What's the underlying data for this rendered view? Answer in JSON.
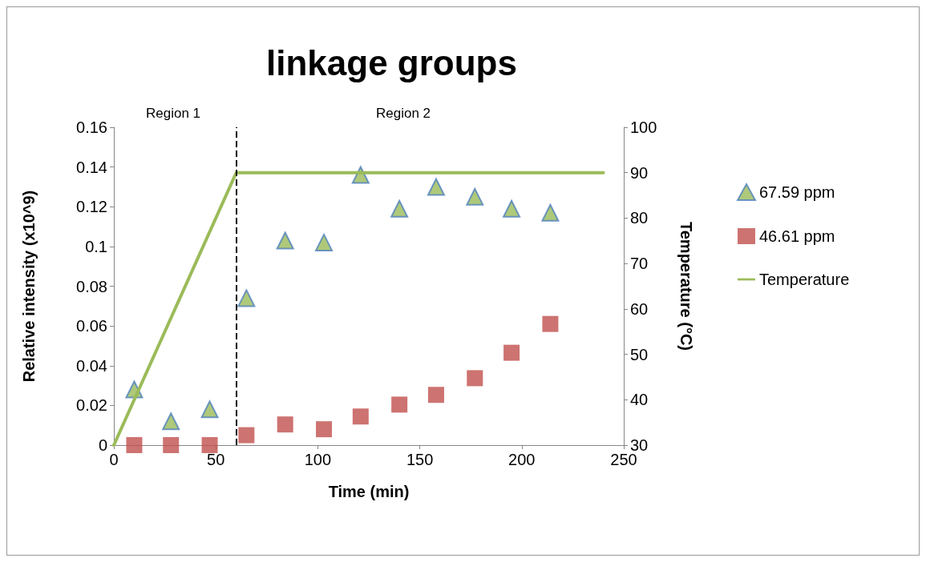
{
  "chart_data": {
    "type": "scatter",
    "title": "linkage groups",
    "xlabel": "Time (min)",
    "ylabel": "Relative intensity (x10^9)",
    "y2label": "Temperature (°C)",
    "annotations": [
      "Region 1",
      "Region 2"
    ],
    "series": [
      {
        "name": "67.59 ppm",
        "marker": "triangle",
        "color": "#9bbb59",
        "x": [
          10,
          28,
          47,
          65,
          84,
          103,
          121,
          140,
          158,
          177,
          195,
          214
        ],
        "values": [
          0.028,
          0.012,
          0.018,
          0.074,
          0.103,
          0.102,
          0.136,
          0.119,
          0.13,
          0.125,
          0.119,
          0.117
        ]
      },
      {
        "name": "46.61 ppm",
        "marker": "square",
        "color": "#c0504d",
        "x": [
          10,
          28,
          47,
          65,
          84,
          103,
          121,
          140,
          158,
          177,
          195,
          214
        ],
        "values": [
          0,
          0,
          0,
          0.005,
          0.0104,
          0.008,
          0.0144,
          0.0204,
          0.0253,
          0.0337,
          0.0465,
          0.061
        ]
      },
      {
        "name": "Temperature",
        "type": "line",
        "axis": "y2",
        "marker": "none",
        "line_style": "solid",
        "color": "#9bbb59",
        "x": [
          0,
          60,
          240
        ],
        "values": [
          30,
          90,
          90
        ]
      }
    ],
    "ref_lines": [
      {
        "axis": "x",
        "value": 60,
        "label": null,
        "color": "#000000",
        "line_style": "dashed"
      }
    ],
    "xlim": [
      0,
      250
    ],
    "xticks": [
      0,
      50,
      100,
      150,
      200,
      250
    ],
    "ylim": [
      0,
      0.16
    ],
    "yticks": [
      0,
      0.02,
      0.04,
      0.06,
      0.08,
      0.1,
      0.12,
      0.14,
      0.16
    ],
    "y2lim": [
      30,
      100
    ],
    "y2ticks": [
      30,
      40,
      50,
      60,
      70,
      80,
      90,
      100
    ],
    "grid": false,
    "legend": "right"
  }
}
